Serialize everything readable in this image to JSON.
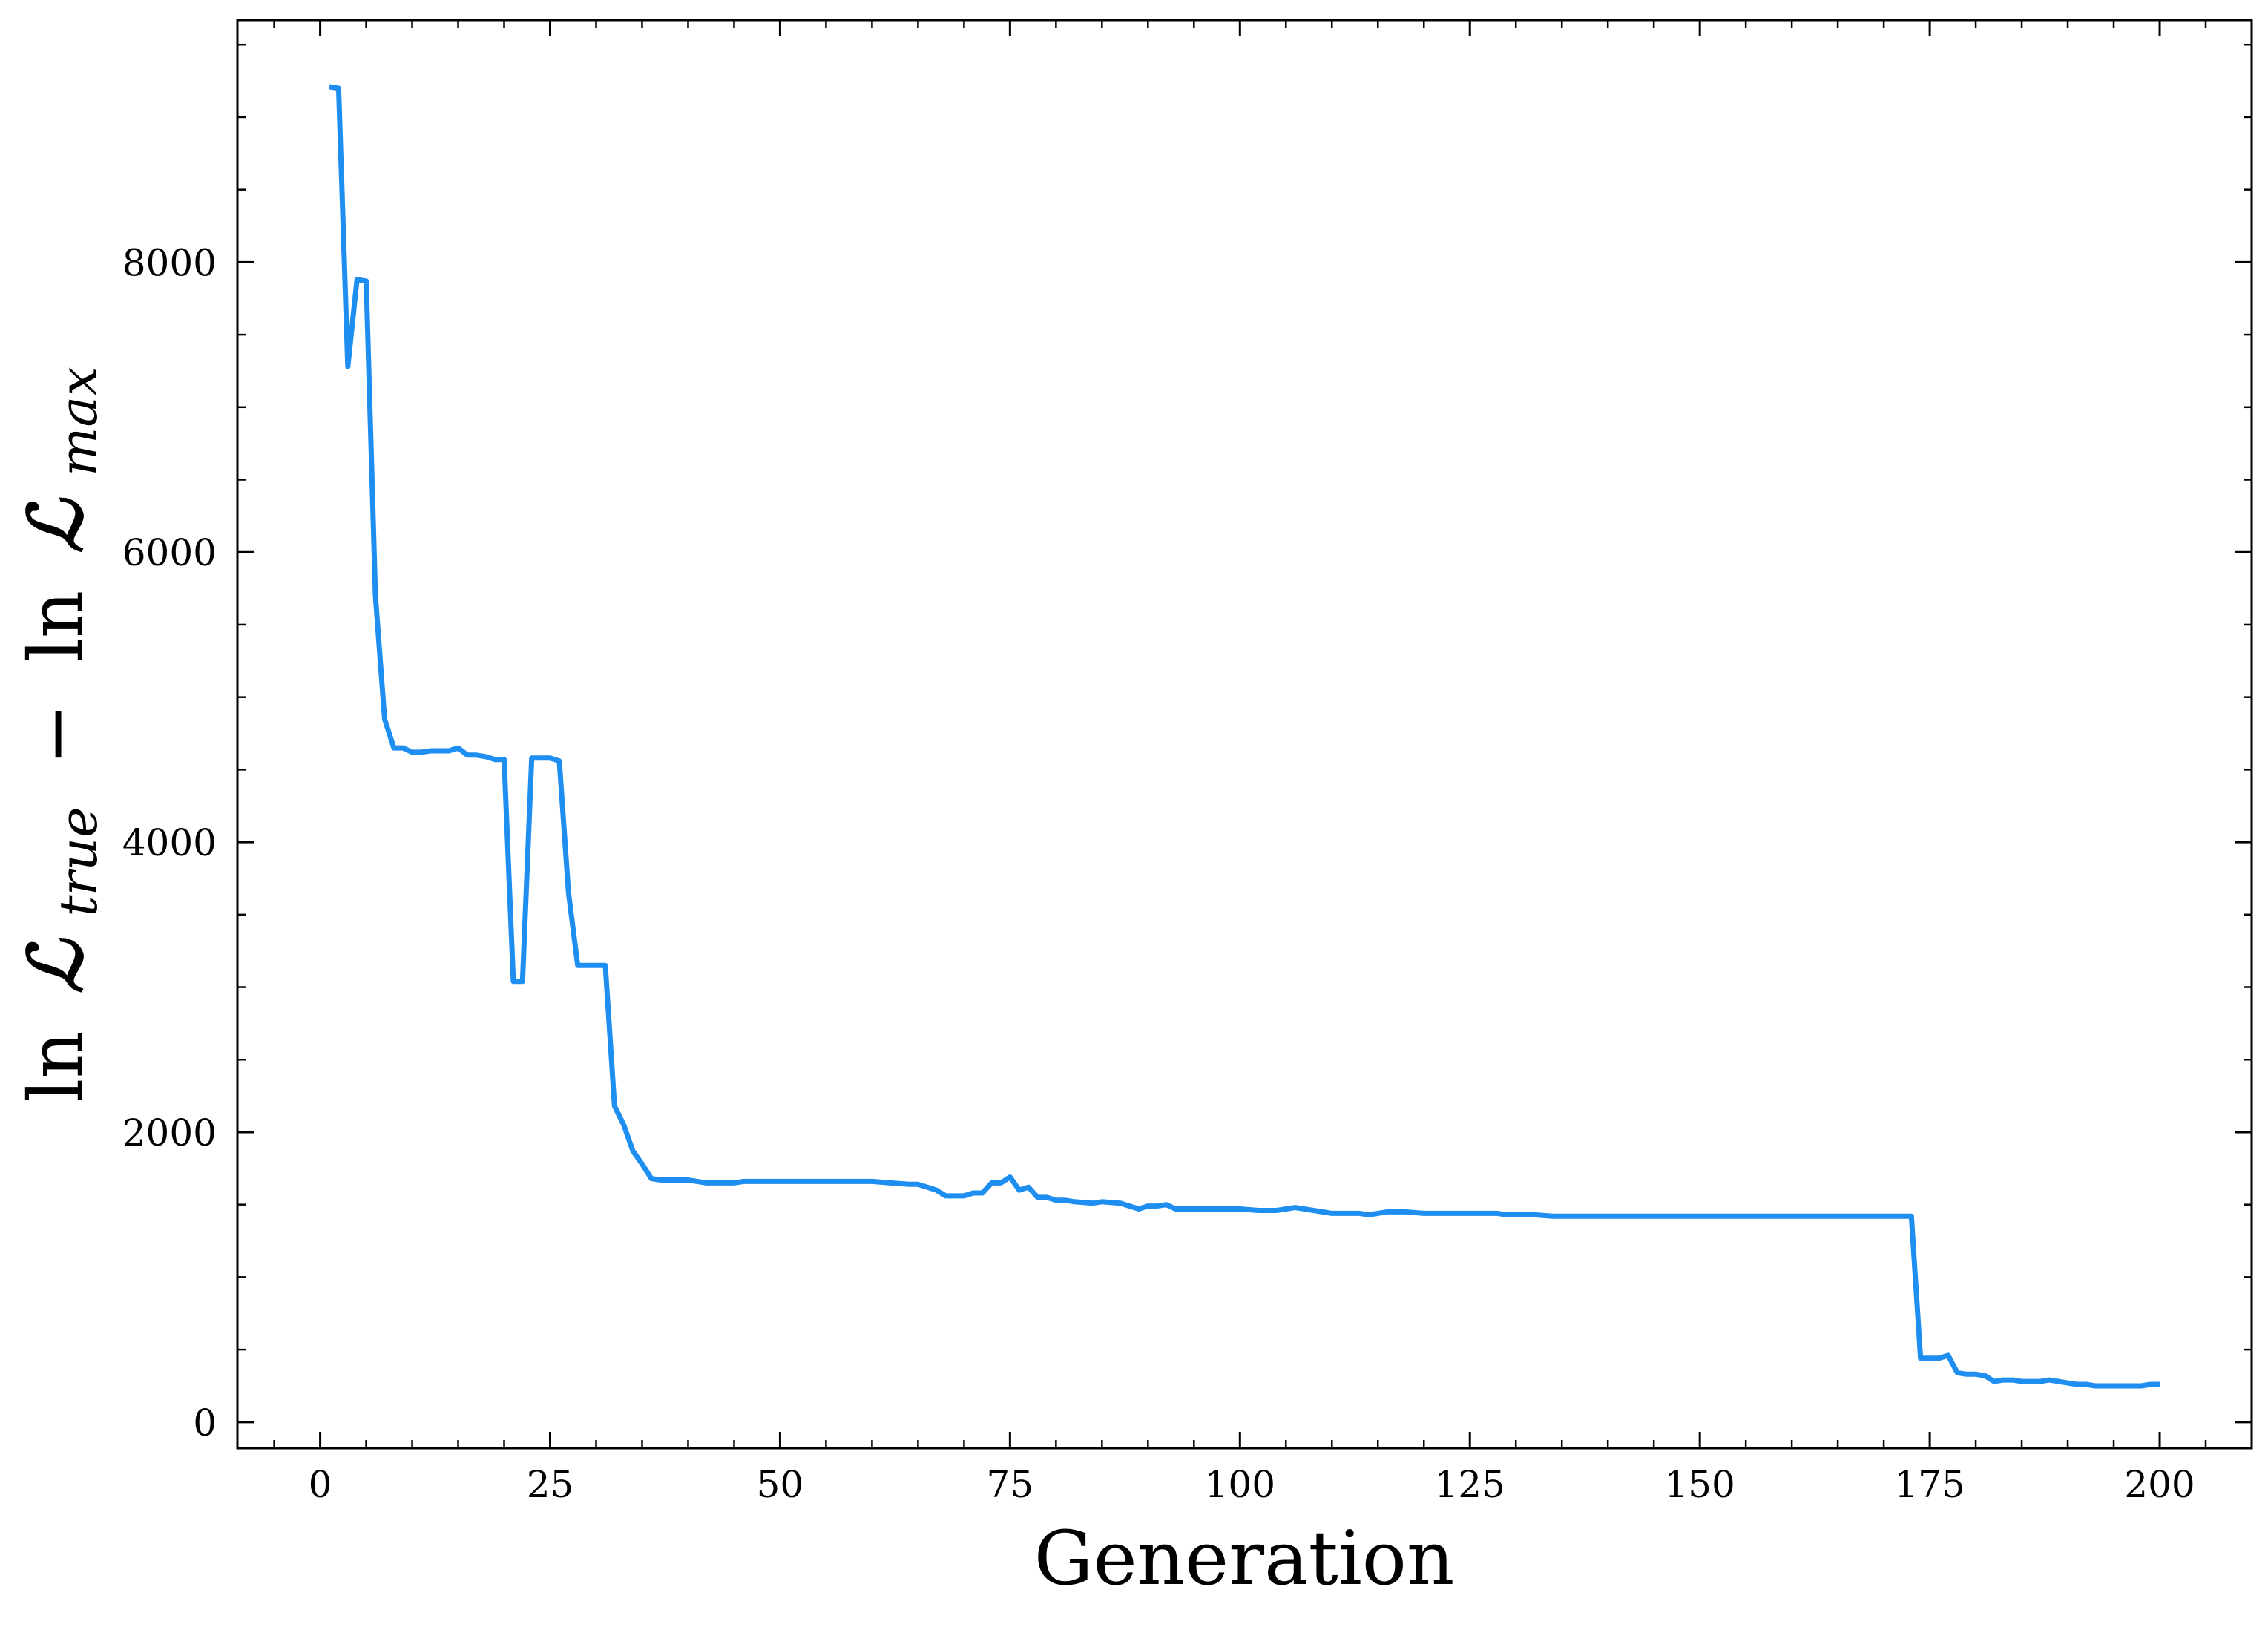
{
  "chart_data": {
    "type": "line",
    "xlabel": "Generation",
    "ylabel": {
      "prefix": "ln",
      "symbol": "ℒ",
      "sub1": "true",
      "minus": "−",
      "sub2": "max"
    },
    "xlim": [
      -9,
      210
    ],
    "ylim": [
      -180,
      9670
    ],
    "xticks": [
      0,
      25,
      50,
      75,
      100,
      125,
      150,
      175,
      200
    ],
    "yticks": [
      0,
      2000,
      4000,
      6000,
      8000
    ],
    "xtick_labels": [
      "0",
      "25",
      "50",
      "75",
      "100",
      "125",
      "150",
      "175",
      "200"
    ],
    "ytick_labels": [
      "0",
      "2000",
      "4000",
      "6000",
      "8000"
    ],
    "grid": false,
    "line_color": "#1f8ef1",
    "series": [
      {
        "x": [
          1,
          2,
          3,
          4,
          5,
          6,
          7,
          8,
          9,
          10,
          11,
          12,
          13,
          14,
          15,
          16,
          17,
          18,
          19,
          20,
          21,
          22,
          23,
          24,
          25,
          26,
          27,
          28,
          29,
          30,
          31,
          32,
          33,
          34,
          35,
          36,
          37,
          38,
          39,
          40,
          42,
          44,
          45,
          46,
          48,
          50,
          52,
          53,
          54,
          55,
          56,
          57,
          58,
          60,
          62,
          64,
          65,
          66,
          67,
          68,
          69,
          70,
          71,
          72,
          73,
          74,
          75,
          76,
          77,
          78,
          79,
          80,
          81,
          82,
          84,
          85,
          87,
          88,
          89,
          90,
          91,
          92,
          93,
          94,
          96,
          98,
          100,
          102,
          104,
          106,
          108,
          110,
          112,
          113,
          114,
          115,
          116,
          118,
          120,
          122,
          124,
          126,
          128,
          129,
          130,
          131,
          132,
          134,
          136,
          138,
          140,
          145,
          150,
          155,
          160,
          165,
          170,
          171,
          172,
          173,
          174,
          175,
          176,
          177,
          178,
          179,
          180,
          181,
          182,
          183,
          184,
          185,
          186,
          187,
          188,
          189,
          190,
          191,
          192,
          193,
          194,
          195,
          196,
          197,
          198,
          199,
          200
        ],
        "y": [
          9210,
          9200,
          7280,
          7880,
          7870,
          5700,
          4850,
          4650,
          4650,
          4620,
          4620,
          4630,
          4630,
          4630,
          4650,
          4600,
          4600,
          4590,
          4570,
          4570,
          3040,
          3040,
          4580,
          4580,
          4580,
          4560,
          3650,
          3150,
          3150,
          3150,
          3150,
          2180,
          2050,
          1870,
          1780,
          1680,
          1670,
          1670,
          1670,
          1670,
          1650,
          1650,
          1650,
          1660,
          1660,
          1660,
          1660,
          1660,
          1660,
          1660,
          1660,
          1660,
          1660,
          1660,
          1650,
          1640,
          1640,
          1620,
          1600,
          1560,
          1560,
          1560,
          1580,
          1580,
          1650,
          1650,
          1690,
          1600,
          1620,
          1550,
          1550,
          1530,
          1530,
          1520,
          1510,
          1520,
          1510,
          1490,
          1470,
          1490,
          1490,
          1500,
          1470,
          1470,
          1470,
          1470,
          1470,
          1460,
          1460,
          1480,
          1460,
          1440,
          1440,
          1440,
          1430,
          1440,
          1450,
          1450,
          1440,
          1440,
          1440,
          1440,
          1440,
          1430,
          1430,
          1430,
          1430,
          1420,
          1420,
          1420,
          1420,
          1420,
          1420,
          1420,
          1420,
          1420,
          1420,
          1420,
          1420,
          1420,
          440,
          440,
          440,
          460,
          340,
          330,
          330,
          320,
          280,
          290,
          290,
          280,
          280,
          280,
          290,
          280,
          270,
          260,
          260,
          250,
          250,
          250,
          250,
          250,
          250,
          260,
          260
        ]
      }
    ]
  }
}
